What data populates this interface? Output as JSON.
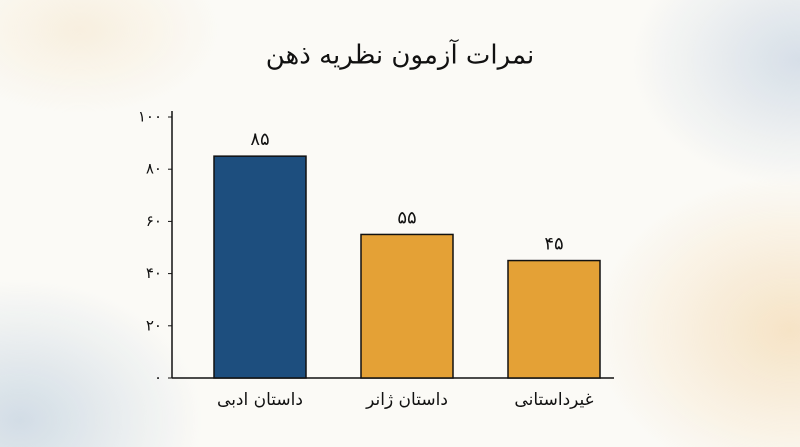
{
  "chart_data": {
    "type": "bar",
    "title": "نمرات آزمون نظریه ذهن",
    "categories": [
      "داستان ادبی",
      "داستان ژانر",
      "غیرداستانی"
    ],
    "values": [
      85,
      55,
      45
    ],
    "value_labels": [
      "۸۵",
      "۵۵",
      "۴۵"
    ],
    "colors": [
      "#1d4e7e",
      "#e4a136",
      "#e4a136"
    ],
    "ylim": [
      0,
      100
    ],
    "yticks": [
      {
        "value": 0,
        "label": "۰"
      },
      {
        "value": 20,
        "label": "۲۰"
      },
      {
        "value": 40,
        "label": "۴۰"
      },
      {
        "value": 60,
        "label": "۶۰"
      },
      {
        "value": 80,
        "label": "۸۰"
      },
      {
        "value": 100,
        "label": "۱۰۰"
      }
    ],
    "grid": false
  }
}
